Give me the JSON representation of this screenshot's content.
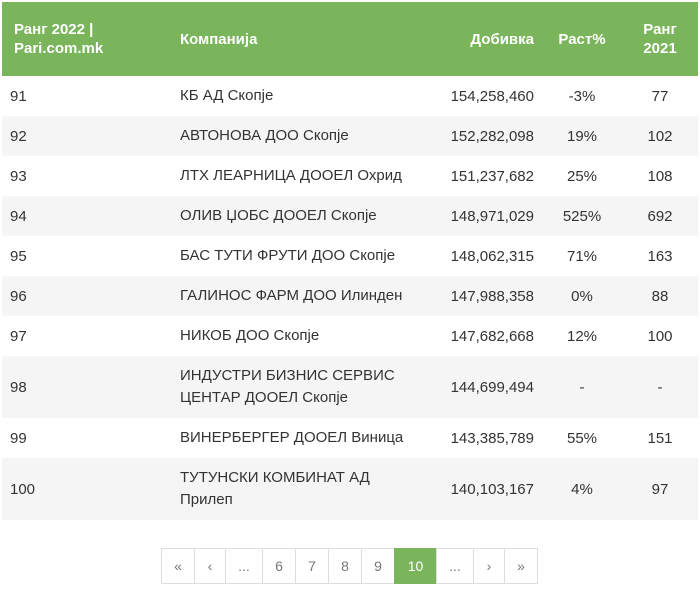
{
  "table": {
    "headers": {
      "rank2022_line1": "Ранг 2022 |",
      "rank2022_line2": "Pari.com.mk",
      "company": "Компанија",
      "profit": "Добивка",
      "growth": "Раст%",
      "rank2021_line1": "Ранг",
      "rank2021_line2": "2021"
    },
    "rows": [
      {
        "rank": "91",
        "company_line1": "КБ АД Скопје",
        "company_line2": "",
        "profit": "154,258,460",
        "growth": "-3%",
        "rank2021": "77"
      },
      {
        "rank": "92",
        "company_line1": "АВТОНОВА ДОО Скопје",
        "company_line2": "",
        "profit": "152,282,098",
        "growth": "19%",
        "rank2021": "102"
      },
      {
        "rank": "93",
        "company_line1": "ЛТХ ЛЕАРНИЦА ДООЕЛ Охрид",
        "company_line2": "",
        "profit": "151,237,682",
        "growth": "25%",
        "rank2021": "108"
      },
      {
        "rank": "94",
        "company_line1": "ОЛИВ ЏОБС ДООЕЛ Скопје",
        "company_line2": "",
        "profit": "148,971,029",
        "growth": "525%",
        "rank2021": "692"
      },
      {
        "rank": "95",
        "company_line1": "БАС ТУТИ ФРУТИ ДОО Скопје",
        "company_line2": "",
        "profit": "148,062,315",
        "growth": "71%",
        "rank2021": "163"
      },
      {
        "rank": "96",
        "company_line1": "ГАЛИНОС ФАРМ ДОО Илинден",
        "company_line2": "",
        "profit": "147,988,358",
        "growth": "0%",
        "rank2021": "88"
      },
      {
        "rank": "97",
        "company_line1": "НИКОБ ДОО Скопје",
        "company_line2": "",
        "profit": "147,682,668",
        "growth": "12%",
        "rank2021": "100"
      },
      {
        "rank": "98",
        "company_line1": "ИНДУСТРИ БИЗНИС СЕРВИС",
        "company_line2": "ЦЕНТАР ДООЕЛ Скопје",
        "profit": "144,699,494",
        "growth": "-",
        "rank2021": "-"
      },
      {
        "rank": "99",
        "company_line1": "ВИНЕРБЕРГЕР ДООЕЛ Виница",
        "company_line2": "",
        "profit": "143,385,789",
        "growth": "55%",
        "rank2021": "151"
      },
      {
        "rank": "100",
        "company_line1": "ТУТУНСКИ КОМБИНАТ АД",
        "company_line2": "Прилеп",
        "profit": "140,103,167",
        "growth": "4%",
        "rank2021": "97"
      }
    ]
  },
  "pagination": {
    "first": "«",
    "prev": "‹",
    "ellipsis_left": "...",
    "page6": "6",
    "page7": "7",
    "page8": "8",
    "page9": "9",
    "page10": "10",
    "ellipsis_right": "...",
    "next": "›",
    "last": "»",
    "active_page": 10
  },
  "colors": {
    "accent": "#7ab55c",
    "row_alt": "#f5f5f5",
    "text": "#333333"
  }
}
